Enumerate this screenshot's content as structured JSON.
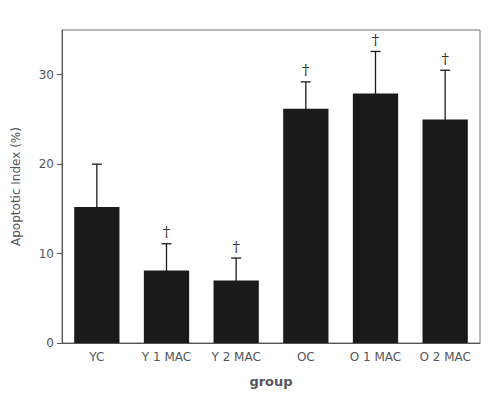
{
  "chart_data": {
    "type": "bar",
    "categories": [
      "YC",
      "Y 1 MAC",
      "Y 2 MAC",
      "OC",
      "O 1 MAC",
      "O 2 MAC"
    ],
    "values": [
      15.2,
      8.1,
      7.0,
      26.2,
      27.9,
      25.0
    ],
    "errors": [
      4.8,
      3.0,
      2.5,
      3.0,
      4.7,
      5.5
    ],
    "color": "#1a1a1a",
    "ylabel": "Apoptotic Index (%)",
    "xlabel": "group",
    "ylim": [
      0,
      35
    ],
    "yticks": [
      0,
      10,
      20,
      30
    ],
    "grid": false,
    "annotations": [
      {
        "text": "†",
        "category": "Y 1 MAC"
      },
      {
        "text": "†",
        "category": "Y 2 MAC"
      },
      {
        "text": "†",
        "category": "OC"
      },
      {
        "text": "†",
        "category": "O 1 MAC"
      },
      {
        "text": "†",
        "category": "O 2 MAC"
      }
    ]
  }
}
